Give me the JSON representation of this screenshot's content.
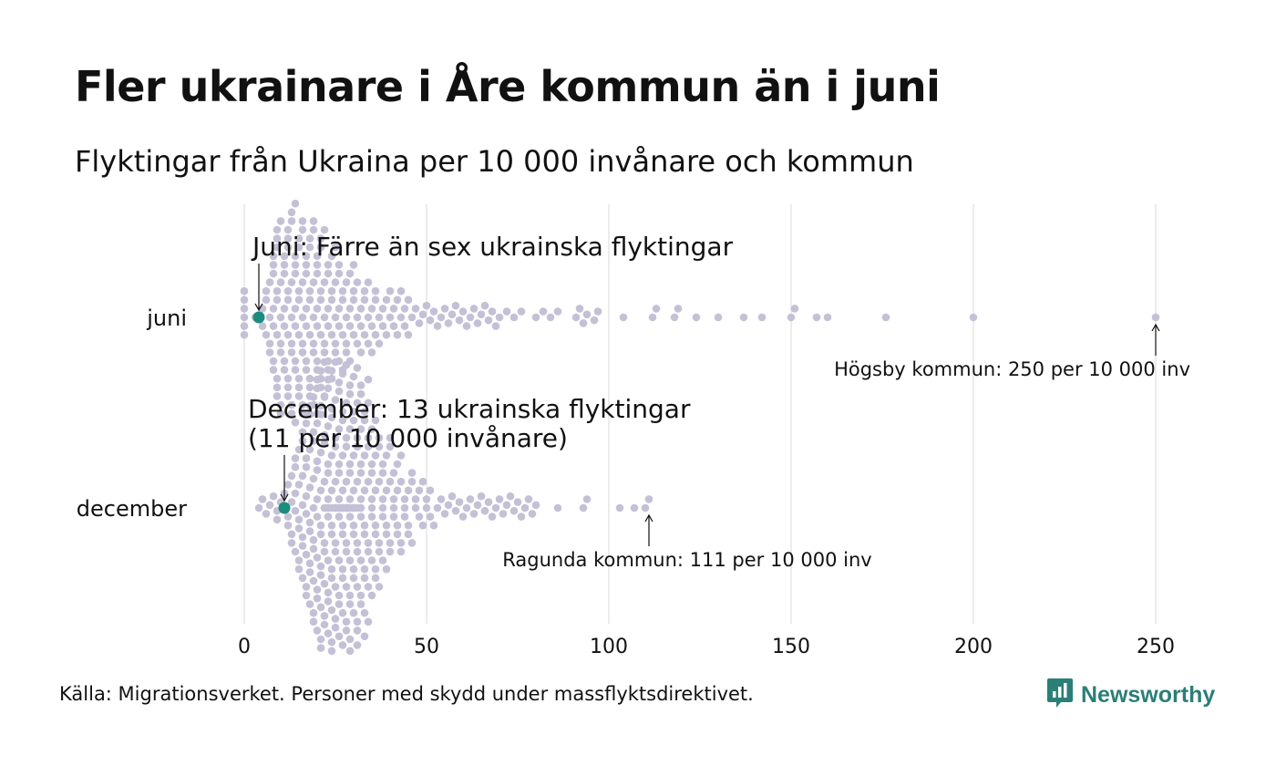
{
  "header": {
    "title": "Fler ukrainare i Åre kommun än i juni",
    "subtitle": "Flyktingar från Ukraina per 10 000 invånare och kommun"
  },
  "footer": {
    "source": "Källa: Migrationsverket. Personer med skydd under massflyktsdirektivet.",
    "brand": "Newsworthy",
    "brand_icon": "newsworthy-logo-icon"
  },
  "colors": {
    "dot": "#c4c1d6",
    "highlight": "#1b8c7e",
    "grid": "#d9d9d9",
    "text": "#111111",
    "brand": "#2a7f76"
  },
  "chart_data": {
    "type": "scatter",
    "variant": "beeswarm",
    "xlabel": "",
    "ylabel": "",
    "xlim": [
      0,
      260
    ],
    "xticks": [
      0,
      50,
      100,
      150,
      200,
      250
    ],
    "grid": true,
    "categories": [
      "juni",
      "december"
    ],
    "series": [
      {
        "name": "juni",
        "highlight_value": 4,
        "values": [
          0,
          0,
          0,
          0,
          0,
          0,
          3,
          4,
          5,
          5,
          6,
          6,
          6,
          7,
          7,
          7,
          7,
          8,
          8,
          8,
          8,
          8,
          8,
          8,
          9,
          9,
          9,
          9,
          9,
          9,
          9,
          9,
          9,
          10,
          10,
          10,
          10,
          10,
          10,
          10,
          11,
          11,
          11,
          11,
          11,
          11,
          11,
          12,
          12,
          12,
          12,
          12,
          12,
          12,
          12,
          12,
          13,
          13,
          13,
          13,
          13,
          13,
          13,
          13,
          14,
          14,
          14,
          14,
          14,
          14,
          14,
          14,
          14,
          15,
          15,
          15,
          15,
          15,
          15,
          15,
          15,
          16,
          16,
          16,
          16,
          16,
          16,
          16,
          16,
          17,
          17,
          17,
          17,
          17,
          17,
          17,
          18,
          18,
          18,
          18,
          18,
          18,
          18,
          18,
          19,
          19,
          19,
          19,
          19,
          19,
          19,
          20,
          20,
          20,
          20,
          20,
          20,
          20,
          20,
          21,
          21,
          21,
          21,
          21,
          21,
          21,
          22,
          22,
          22,
          22,
          22,
          22,
          23,
          23,
          23,
          23,
          23,
          23,
          24,
          24,
          24,
          24,
          24,
          25,
          25,
          25,
          25,
          25,
          26,
          26,
          26,
          26,
          26,
          27,
          27,
          27,
          27,
          28,
          28,
          28,
          28,
          29,
          29,
          29,
          29,
          30,
          30,
          30,
          30,
          31,
          31,
          31,
          32,
          32,
          32,
          33,
          33,
          33,
          34,
          34,
          34,
          35,
          35,
          35,
          36,
          36,
          36,
          37,
          37,
          38,
          38,
          39,
          39,
          40,
          40,
          41,
          41,
          42,
          42,
          43,
          43,
          44,
          44,
          45,
          45,
          46,
          47,
          48,
          49,
          50,
          51,
          52,
          53,
          54,
          55,
          56,
          57,
          58,
          59,
          60,
          61,
          62,
          63,
          64,
          65,
          66,
          67,
          68,
          69,
          70,
          72,
          74,
          76,
          80,
          82,
          84,
          86,
          91,
          92,
          93,
          94,
          96,
          97,
          104,
          112,
          113,
          118,
          119,
          124,
          130,
          137,
          142,
          150,
          151,
          157,
          160,
          176,
          200,
          250
        ]
      },
      {
        "name": "december",
        "highlight_value": 11,
        "values": [
          4,
          5,
          6,
          7,
          8,
          9,
          9,
          10,
          11,
          11,
          12,
          12,
          12,
          13,
          13,
          13,
          13,
          14,
          14,
          14,
          14,
          14,
          15,
          15,
          15,
          15,
          15,
          15,
          16,
          16,
          16,
          16,
          16,
          16,
          16,
          17,
          17,
          17,
          17,
          17,
          17,
          17,
          17,
          18,
          18,
          18,
          18,
          18,
          18,
          18,
          18,
          18,
          19,
          19,
          19,
          19,
          19,
          19,
          19,
          19,
          19,
          19,
          20,
          20,
          20,
          20,
          20,
          20,
          20,
          20,
          20,
          20,
          20,
          21,
          21,
          21,
          21,
          21,
          21,
          21,
          21,
          21,
          21,
          21,
          21,
          22,
          22,
          22,
          22,
          22,
          22,
          22,
          22,
          22,
          22,
          22,
          22,
          23,
          23,
          23,
          23,
          23,
          23,
          23,
          23,
          23,
          23,
          23,
          23,
          23,
          24,
          24,
          24,
          24,
          24,
          24,
          24,
          24,
          24,
          24,
          24,
          24,
          24,
          25,
          25,
          25,
          25,
          25,
          25,
          25,
          25,
          25,
          25,
          25,
          25,
          25,
          26,
          26,
          26,
          26,
          26,
          26,
          26,
          26,
          26,
          26,
          26,
          26,
          26,
          26,
          27,
          27,
          27,
          27,
          27,
          27,
          27,
          27,
          27,
          27,
          27,
          27,
          27,
          27,
          27,
          28,
          28,
          28,
          28,
          28,
          28,
          28,
          28,
          28,
          28,
          28,
          28,
          28,
          28,
          28,
          29,
          29,
          29,
          29,
          29,
          29,
          29,
          29,
          29,
          29,
          29,
          29,
          29,
          29,
          30,
          30,
          30,
          30,
          30,
          30,
          30,
          30,
          30,
          30,
          30,
          30,
          30,
          31,
          31,
          31,
          31,
          31,
          31,
          31,
          31,
          31,
          31,
          31,
          31,
          32,
          32,
          32,
          32,
          32,
          32,
          32,
          32,
          32,
          32,
          32,
          33,
          33,
          33,
          33,
          33,
          33,
          33,
          33,
          33,
          33,
          34,
          34,
          34,
          34,
          34,
          34,
          34,
          34,
          34,
          35,
          35,
          35,
          35,
          35,
          35,
          35,
          35,
          36,
          36,
          36,
          36,
          36,
          36,
          36,
          37,
          37,
          37,
          37,
          37,
          37,
          38,
          38,
          38,
          38,
          38,
          38,
          39,
          39,
          39,
          39,
          39,
          40,
          40,
          40,
          40,
          40,
          41,
          41,
          41,
          41,
          42,
          42,
          42,
          42,
          43,
          43,
          43,
          43,
          44,
          44,
          44,
          45,
          45,
          45,
          46,
          46,
          46,
          47,
          47,
          48,
          48,
          49,
          49,
          50,
          50,
          51,
          51,
          52,
          53,
          54,
          55,
          56,
          57,
          58,
          59,
          60,
          61,
          62,
          63,
          64,
          65,
          66,
          67,
          68,
          69,
          70,
          71,
          72,
          73,
          74,
          75,
          76,
          77,
          78,
          79,
          80,
          86,
          93,
          94,
          103,
          107,
          110,
          111
        ]
      }
    ],
    "annotations": [
      {
        "series": "juni",
        "x": 4,
        "text": "Juni: Färre än sex ukrainska flyktingar",
        "side": "above"
      },
      {
        "series": "juni",
        "x": 250,
        "text": "Högsby kommun: 250 per 10 000 inv",
        "side": "below"
      },
      {
        "series": "december",
        "x": 11,
        "text": "December: 13 ukrainska flyktingar\n(11 per 10 000 invånare)",
        "side": "above"
      },
      {
        "series": "december",
        "x": 111,
        "text": "Ragunda kommun: 111 per 10 000 inv",
        "side": "below"
      }
    ]
  }
}
